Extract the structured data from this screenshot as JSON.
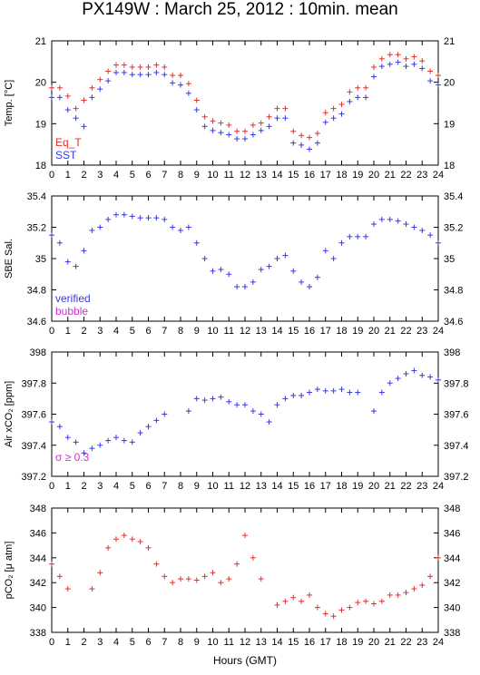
{
  "title": "PX149W : March 25, 2012 : 10min. mean",
  "xlabel": "Hours (GMT)",
  "x_ticks": [
    "0",
    "1",
    "2",
    "3",
    "4",
    "5",
    "6",
    "7",
    "8",
    "9",
    "10",
    "11",
    "12",
    "13",
    "14",
    "15",
    "16",
    "17",
    "18",
    "19",
    "20",
    "21",
    "22",
    "23",
    "24"
  ],
  "colors": {
    "eq_t": "#e03030",
    "sst": "#3838e0",
    "verified": "#3838e0",
    "bubble": "#cc33cc",
    "pco2": "#e03030",
    "sigma": "#cc33cc"
  },
  "chart_data": [
    {
      "type": "scatter",
      "ylabel": "Temp. [°C]",
      "ylim": [
        18,
        21
      ],
      "y_ticks": [
        "18",
        "19",
        "20",
        "21"
      ],
      "legend": [
        "Eq_T",
        "SST"
      ],
      "legend_placement": "bottom-left",
      "x": [
        0,
        0.5,
        1,
        1.5,
        2,
        2.5,
        3,
        3.5,
        4,
        4.5,
        5,
        5.5,
        6,
        6.5,
        7,
        7.5,
        8,
        8.5,
        9,
        9.5,
        10,
        10.5,
        11,
        11.5,
        12,
        12.5,
        13,
        13.5,
        14,
        14.5,
        15,
        15.5,
        16,
        16.5,
        17,
        17.5,
        18,
        18.5,
        19,
        19.5,
        20,
        20.5,
        21,
        21.5,
        22,
        22.5,
        23,
        23.5,
        24
      ],
      "series": [
        {
          "name": "Eq_T",
          "values": [
            19.8,
            19.8,
            19.6,
            19.3,
            19.5,
            19.8,
            20.0,
            20.2,
            20.35,
            20.35,
            20.3,
            20.3,
            20.3,
            20.35,
            20.3,
            20.1,
            20.1,
            19.9,
            19.5,
            19.1,
            19.0,
            18.95,
            18.9,
            18.75,
            18.75,
            18.9,
            18.95,
            19.1,
            19.3,
            19.3,
            18.75,
            18.65,
            18.6,
            18.7,
            19.2,
            19.3,
            19.4,
            19.7,
            19.8,
            19.8,
            20.3,
            20.5,
            20.6,
            20.6,
            20.5,
            20.55,
            20.45,
            20.2,
            20.1
          ]
        },
        {
          "name": "SST",
          "values": [
            19.7,
            19.7,
            19.4,
            19.2,
            19.0,
            19.7,
            19.9,
            20.1,
            20.3,
            20.3,
            20.25,
            20.25,
            20.25,
            20.3,
            20.25,
            20.05,
            20.0,
            19.8,
            19.4,
            19.0,
            18.9,
            18.85,
            18.8,
            18.7,
            18.7,
            18.8,
            18.9,
            19.0,
            19.2,
            19.2,
            18.6,
            18.55,
            18.45,
            18.6,
            19.1,
            19.2,
            19.3,
            19.6,
            19.7,
            19.7,
            20.2,
            20.45,
            20.5,
            20.55,
            20.45,
            20.5,
            20.4,
            20.1,
            20.0
          ]
        }
      ]
    },
    {
      "type": "scatter",
      "ylabel": "SBE Sal.",
      "ylim": [
        34.6,
        35.4
      ],
      "y_ticks": [
        "34.6",
        "34.8",
        "35",
        "35.2",
        "35.4"
      ],
      "legend": [
        "verified",
        "bubble"
      ],
      "legend_placement": "bottom-left",
      "x": [
        0,
        0.5,
        1,
        1.5,
        2,
        2.5,
        3,
        3.5,
        4,
        4.5,
        5,
        5.5,
        6,
        6.5,
        7,
        7.5,
        8,
        8.5,
        9,
        9.5,
        10,
        10.5,
        11,
        11.5,
        12,
        12.5,
        13,
        13.5,
        14,
        14.5,
        15,
        15.5,
        16,
        16.5,
        17,
        17.5,
        18,
        18.5,
        19,
        19.5,
        20,
        20.5,
        21,
        21.5,
        22,
        22.5,
        23,
        23.5,
        24
      ],
      "series": [
        {
          "name": "verified",
          "values": [
            35.15,
            35.1,
            34.98,
            34.95,
            35.05,
            35.18,
            35.2,
            35.25,
            35.28,
            35.28,
            35.27,
            35.26,
            35.26,
            35.26,
            35.25,
            35.2,
            35.18,
            35.2,
            35.1,
            35.0,
            34.92,
            34.93,
            34.9,
            34.82,
            34.82,
            34.85,
            34.93,
            34.95,
            35.0,
            35.02,
            34.92,
            34.85,
            34.82,
            34.88,
            35.05,
            35.0,
            35.1,
            35.14,
            35.14,
            35.14,
            35.22,
            35.25,
            35.25,
            35.24,
            35.22,
            35.2,
            35.18,
            35.15,
            35.1
          ]
        }
      ]
    },
    {
      "type": "scatter",
      "ylabel": "Air xCO₂ [ppm]",
      "ylim": [
        397.2,
        398
      ],
      "y_ticks": [
        "397.2",
        "397.4",
        "397.6",
        "397.8",
        "398"
      ],
      "annotation": "σ ≥ 0.3",
      "x": [
        0,
        0.5,
        1,
        1.5,
        2,
        2.5,
        3,
        3.5,
        4,
        4.5,
        5,
        5.5,
        6,
        6.5,
        7,
        8.5,
        9,
        9.5,
        10,
        10.5,
        11,
        11.5,
        12,
        12.5,
        13,
        13.5,
        14,
        14.5,
        15,
        15.5,
        16,
        16.5,
        17,
        17.5,
        18,
        18.5,
        19,
        20,
        20.5,
        21,
        21.5,
        22,
        22.5,
        23,
        23.5,
        24
      ],
      "series": [
        {
          "name": "verified",
          "values": [
            397.55,
            397.52,
            397.45,
            397.42,
            397.35,
            397.38,
            397.4,
            397.43,
            397.45,
            397.43,
            397.42,
            397.48,
            397.52,
            397.56,
            397.6,
            397.62,
            397.7,
            397.69,
            397.7,
            397.71,
            397.68,
            397.66,
            397.66,
            397.62,
            397.6,
            397.55,
            397.66,
            397.7,
            397.72,
            397.72,
            397.74,
            397.76,
            397.75,
            397.75,
            397.76,
            397.74,
            397.74,
            397.62,
            397.74,
            397.8,
            397.83,
            397.86,
            397.88,
            397.85,
            397.84,
            397.82
          ]
        }
      ]
    },
    {
      "type": "scatter",
      "ylabel": "pCO₂ [μ atm]",
      "ylim": [
        338,
        348
      ],
      "y_ticks": [
        "338",
        "340",
        "342",
        "344",
        "346",
        "348"
      ],
      "x": [
        0,
        0.5,
        1,
        2.5,
        3,
        3.5,
        4,
        4.5,
        5,
        5.5,
        6,
        6.5,
        7,
        7.5,
        8,
        8.5,
        9,
        9.5,
        10,
        10.5,
        11,
        11.5,
        12,
        12.5,
        13,
        14,
        14.5,
        15,
        15.5,
        16,
        16.5,
        17,
        17.5,
        18,
        18.5,
        19,
        19.5,
        20,
        20.5,
        21,
        21.5,
        22,
        22.5,
        23,
        23.5,
        24
      ],
      "series": [
        {
          "name": "pCO2",
          "values": [
            343.5,
            342.5,
            341.5,
            341.5,
            342.8,
            344.8,
            345.5,
            345.8,
            345.5,
            345.3,
            344.8,
            343.5,
            342.5,
            342.0,
            342.3,
            342.3,
            342.2,
            342.5,
            342.8,
            342.0,
            342.3,
            343.5,
            345.8,
            344.0,
            342.3,
            340.2,
            340.5,
            340.8,
            340.5,
            341.0,
            340.0,
            339.5,
            339.3,
            339.8,
            340.0,
            340.4,
            340.5,
            340.3,
            340.5,
            341.0,
            341.0,
            341.2,
            341.5,
            341.8,
            342.5,
            344.0
          ]
        }
      ]
    }
  ]
}
